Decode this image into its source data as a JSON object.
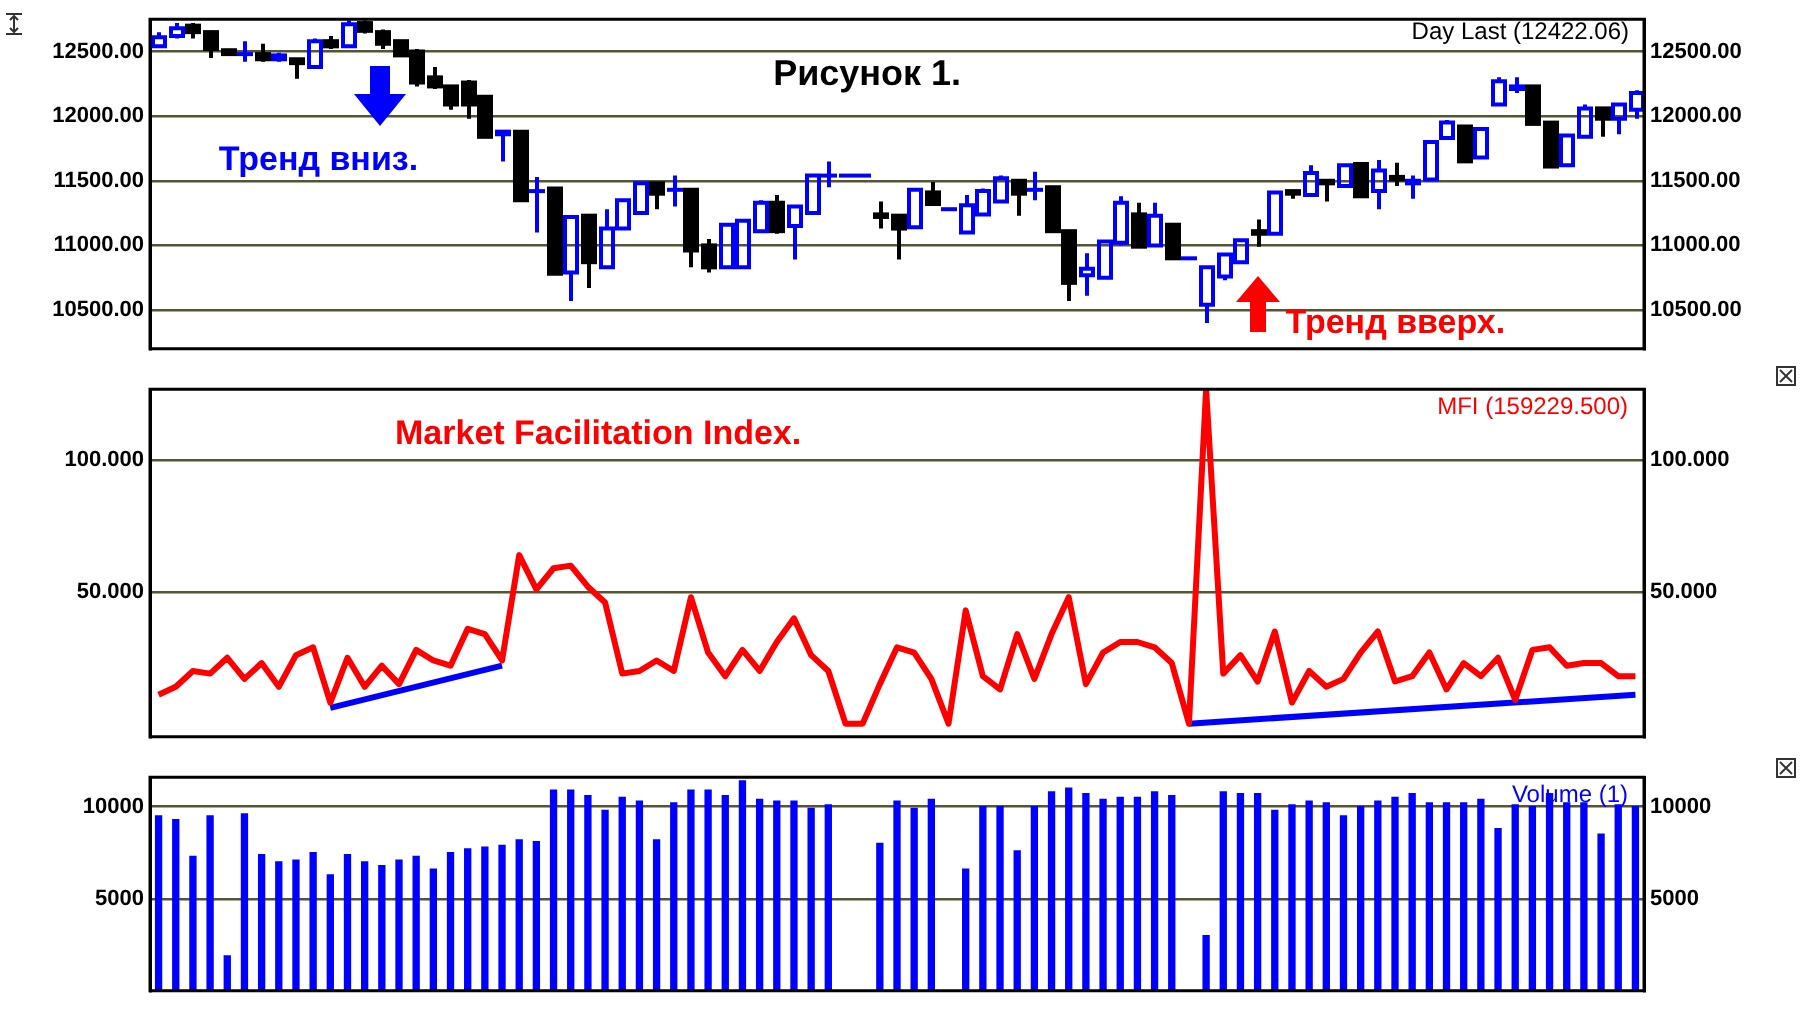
{
  "chart_data": [
    {
      "type": "candlestick",
      "title": "Рисунок 1.",
      "annotations": [
        "Тренд вниз.",
        "Тренд вверх.",
        "Day Last (12422.06)"
      ],
      "categories": [
        null,
        null,
        null,
        null,
        null,
        null,
        null,
        null,
        null,
        null,
        null,
        null,
        null,
        null,
        null,
        null,
        null,
        null,
        null,
        null,
        null,
        null,
        null,
        null,
        null,
        null,
        null,
        null,
        null,
        null,
        null,
        null,
        null,
        null,
        null,
        null,
        null,
        null,
        null,
        null,
        null,
        null,
        null,
        null,
        null,
        null,
        null,
        null,
        null,
        null,
        null,
        null,
        null,
        null,
        null,
        null,
        null,
        null,
        null,
        null,
        null,
        null,
        null,
        null,
        null,
        null,
        null,
        null,
        null,
        null,
        null,
        null,
        null,
        null,
        null,
        null,
        null,
        null,
        null,
        null,
        null,
        null,
        null,
        null,
        null,
        null,
        null
      ],
      "ohlc": [
        [
          12540,
          12650,
          12530,
          12610
        ],
        [
          12620,
          12720,
          12600,
          12680
        ],
        [
          12700,
          12720,
          12600,
          12650
        ],
        [
          12650,
          12660,
          12450,
          12520
        ],
        [
          12510,
          12520,
          12470,
          12480
        ],
        [
          12470,
          12580,
          12420,
          12480
        ],
        [
          12480,
          12560,
          12420,
          12440
        ],
        [
          12440,
          12490,
          12420,
          12470
        ],
        [
          12440,
          12450,
          12290,
          12410
        ],
        [
          12380,
          12600,
          12370,
          12580
        ],
        [
          12580,
          12620,
          12520,
          12540
        ],
        [
          12540,
          12740,
          12530,
          12710
        ],
        [
          12720,
          12740,
          12640,
          12660
        ],
        [
          12650,
          12670,
          12520,
          12560
        ],
        [
          12580,
          12590,
          12460,
          12470
        ],
        [
          12500,
          12520,
          12230,
          12260
        ],
        [
          12300,
          12380,
          12210,
          12230
        ],
        [
          12230,
          12240,
          12050,
          12090
        ],
        [
          12260,
          12280,
          11980,
          12090
        ],
        [
          12150,
          12150,
          11830,
          11840
        ],
        [
          11860,
          11890,
          11650,
          11880
        ],
        [
          11880,
          11890,
          11340,
          11350
        ],
        [
          11410,
          11530,
          11100,
          11420
        ],
        [
          11440,
          11450,
          10780,
          10780
        ],
        [
          10790,
          11230,
          10570,
          11220
        ],
        [
          11230,
          11240,
          10670,
          10870
        ],
        [
          10830,
          11280,
          10820,
          11130
        ],
        [
          11130,
          11350,
          11120,
          11350
        ],
        [
          11250,
          11490,
          11240,
          11480
        ],
        [
          11480,
          11490,
          11280,
          11400
        ],
        [
          11420,
          11540,
          11300,
          11430
        ],
        [
          11430,
          11440,
          10830,
          10960
        ],
        [
          11000,
          11050,
          10790,
          10830
        ],
        [
          10830,
          11170,
          10820,
          11160
        ],
        [
          10830,
          11190,
          10820,
          11190
        ],
        [
          11110,
          11350,
          11100,
          11330
        ],
        [
          11330,
          11390,
          11090,
          11110
        ],
        [
          11150,
          11310,
          10890,
          11300
        ],
        [
          11250,
          11540,
          11240,
          11540
        ],
        [
          11530,
          11650,
          11450,
          11540
        ],
        [
          11540,
          11540,
          11540,
          11540
        ],
        [
          11540,
          11540,
          11540,
          11540
        ],
        [
          11240,
          11340,
          11130,
          11220
        ],
        [
          11230,
          11240,
          10890,
          11130
        ],
        [
          11140,
          11440,
          11130,
          11430
        ],
        [
          11410,
          11490,
          11310,
          11320
        ],
        [
          11280,
          11280,
          11280,
          11280
        ],
        [
          11100,
          11390,
          11090,
          11310
        ],
        [
          11240,
          11440,
          11230,
          11420
        ],
        [
          11340,
          11540,
          11330,
          11520
        ],
        [
          11500,
          11510,
          11230,
          11400
        ],
        [
          11420,
          11570,
          11350,
          11430
        ],
        [
          11450,
          11460,
          11100,
          11110
        ],
        [
          11110,
          11120,
          10570,
          10710
        ],
        [
          10770,
          10940,
          10610,
          10820
        ],
        [
          10750,
          11040,
          10740,
          11030
        ],
        [
          11020,
          11380,
          11000,
          11330
        ],
        [
          11240,
          11330,
          10990,
          10990
        ],
        [
          11000,
          11330,
          10990,
          11230
        ],
        [
          11160,
          11170,
          10890,
          10900
        ],
        [
          10900,
          10900,
          10900,
          10900
        ],
        [
          10540,
          10840,
          10400,
          10830
        ],
        [
          10760,
          10940,
          10730,
          10930
        ],
        [
          10870,
          11050,
          10860,
          11040
        ],
        [
          11110,
          11200,
          10990,
          11090
        ],
        [
          11090,
          11420,
          11080,
          11410
        ],
        [
          11420,
          11430,
          11360,
          11400
        ],
        [
          11390,
          11620,
          11380,
          11560
        ],
        [
          11500,
          11510,
          11340,
          11480
        ],
        [
          11460,
          11630,
          11450,
          11620
        ],
        [
          11630,
          11640,
          11370,
          11380
        ],
        [
          11420,
          11660,
          11280,
          11580
        ],
        [
          11530,
          11640,
          11460,
          11510
        ],
        [
          11480,
          11540,
          11360,
          11500
        ],
        [
          11510,
          11810,
          11500,
          11800
        ],
        [
          11830,
          11970,
          11820,
          11950
        ],
        [
          11920,
          11930,
          11650,
          11650
        ],
        [
          11680,
          11910,
          11670,
          11900
        ],
        [
          12090,
          12300,
          12080,
          12270
        ],
        [
          12210,
          12300,
          12180,
          12230
        ],
        [
          12230,
          12240,
          11940,
          11940
        ],
        [
          11950,
          11960,
          11600,
          11610
        ],
        [
          11620,
          11860,
          11610,
          11850
        ],
        [
          11840,
          12090,
          11830,
          12060
        ],
        [
          12060,
          12070,
          11840,
          11980
        ],
        [
          11980,
          12100,
          11860,
          12090
        ],
        [
          12050,
          12200,
          11980,
          12180
        ]
      ],
      "colors": [
        "#0000ff",
        "#0000ff",
        "#000000",
        "#000000",
        "#000000",
        "#0000ff",
        "#000000",
        "#0000ff",
        "#000000",
        "#0000ff",
        "#000000",
        "#0000ff",
        "#000000",
        "#000000",
        "#000000",
        "#000000",
        "#000000",
        "#000000",
        "#000000",
        "#000000",
        "#0000ff",
        "#000000",
        "#0000ff",
        "#000000",
        "#0000ff",
        "#000000",
        "#0000ff",
        "#0000ff",
        "#0000ff",
        "#000000",
        "#0000ff",
        "#000000",
        "#000000",
        "#0000ff",
        "#0000ff",
        "#0000ff",
        "#000000",
        "#0000ff",
        "#0000ff",
        "#0000ff",
        "#0000ff",
        "#0000ff",
        "#000000",
        "#000000",
        "#0000ff",
        "#000000",
        "#0000ff",
        "#0000ff",
        "#0000ff",
        "#0000ff",
        "#000000",
        "#0000ff",
        "#000000",
        "#000000",
        "#0000ff",
        "#0000ff",
        "#0000ff",
        "#000000",
        "#0000ff",
        "#000000",
        "#0000ff",
        "#0000ff",
        "#0000ff",
        "#0000ff",
        "#000000",
        "#0000ff",
        "#000000",
        "#0000ff",
        "#000000",
        "#0000ff",
        "#000000",
        "#0000ff",
        "#000000",
        "#0000ff",
        "#0000ff",
        "#0000ff",
        "#000000",
        "#0000ff",
        "#0000ff",
        "#0000ff",
        "#000000",
        "#000000",
        "#0000ff",
        "#0000ff",
        "#000000",
        "#0000ff",
        "#0000ff"
      ],
      "ylim": [
        10200,
        12750
      ],
      "yticks": [
        {
          "value": 12500,
          "label": "12500.00"
        },
        {
          "value": 12000,
          "label": "12000.00"
        },
        {
          "value": 11500,
          "label": "11500.00"
        },
        {
          "value": 11000,
          "label": "11000.00"
        },
        {
          "value": 10500,
          "label": "10500.00"
        }
      ],
      "y2lim": [
        10200,
        12750
      ],
      "y2ticks": [
        {
          "value": 12500,
          "label": "12500.00"
        },
        {
          "value": 12000,
          "label": "12000.00"
        },
        {
          "value": 11500,
          "label": "11500.00"
        },
        {
          "value": 11000,
          "label": "11000.00"
        },
        {
          "value": 10500,
          "label": "10500.00"
        }
      ],
      "tick_labels": "y",
      "grid": "y"
    },
    {
      "type": "line",
      "annotations": [
        "Market Facilitation Index."
      ],
      "categories": [
        null,
        null,
        null,
        null,
        null,
        null,
        null,
        null,
        null,
        null,
        null,
        null,
        null,
        null,
        null,
        null,
        null,
        null,
        null,
        null,
        null,
        null,
        null,
        null,
        null,
        null,
        null,
        null,
        null,
        null,
        null,
        null,
        null,
        null,
        null,
        null,
        null,
        null,
        null,
        null,
        null,
        null,
        null,
        null,
        null,
        null,
        null,
        null,
        null,
        null,
        null,
        null,
        null,
        null,
        null,
        null,
        null,
        null,
        null,
        null,
        null,
        null,
        null,
        null,
        null,
        null,
        null,
        null,
        null,
        null,
        null,
        null,
        null,
        null,
        null,
        null,
        null,
        null,
        null,
        null,
        null,
        null,
        null,
        null,
        null,
        null,
        null
      ],
      "series": [
        {
          "name": "MFI (159229.500)",
          "color": "#ff0000",
          "values": [
            11,
            14,
            20,
            19,
            25,
            17,
            23,
            14,
            26,
            29,
            8,
            25,
            14,
            22,
            15,
            28,
            24,
            22,
            36,
            34,
            24,
            64,
            51,
            59,
            60,
            52,
            46,
            19,
            20,
            24,
            20,
            48,
            27,
            18,
            28,
            20,
            31,
            40,
            26,
            20,
            0,
            0,
            15,
            29,
            27,
            17,
            0,
            43,
            18,
            13,
            34,
            17,
            34,
            48,
            15,
            27,
            31,
            31,
            29,
            23,
            0,
            127,
            19,
            26,
            16,
            35,
            8,
            20,
            14,
            17,
            27,
            35,
            16,
            18,
            27,
            13,
            23,
            18,
            25,
            9,
            28,
            29,
            22,
            23,
            23,
            18,
            18
          ]
        },
        {
          "type": "line",
          "color": "#0000ff",
          "values": [
            null,
            null,
            null,
            null,
            null,
            null,
            null,
            null,
            null,
            null,
            6,
            null,
            null,
            null,
            null,
            null,
            null,
            null,
            null,
            null,
            22,
            null,
            null,
            null,
            null,
            null,
            null,
            null,
            null,
            null,
            null,
            null,
            null,
            null,
            null,
            null,
            null,
            null,
            null,
            null,
            null,
            null,
            null,
            null,
            null,
            null,
            null,
            null,
            null,
            null,
            null,
            null,
            null,
            null,
            null,
            null,
            null,
            null,
            null,
            null,
            null,
            null,
            null,
            null,
            null,
            null,
            null,
            null,
            null,
            null,
            null,
            null,
            null,
            null,
            null,
            null,
            null,
            null,
            null,
            null,
            null,
            null,
            null,
            null,
            null,
            null,
            null
          ]
        },
        {
          "type": "line",
          "color": "#0000ff",
          "values": [
            null,
            null,
            null,
            null,
            null,
            null,
            null,
            null,
            null,
            null,
            null,
            null,
            null,
            null,
            null,
            null,
            null,
            null,
            null,
            null,
            null,
            null,
            null,
            null,
            null,
            null,
            null,
            null,
            null,
            null,
            null,
            null,
            null,
            null,
            null,
            null,
            null,
            null,
            null,
            null,
            null,
            null,
            null,
            null,
            null,
            null,
            null,
            null,
            null,
            null,
            null,
            null,
            null,
            null,
            null,
            null,
            null,
            null,
            null,
            null,
            0,
            null,
            null,
            null,
            null,
            null,
            null,
            null,
            null,
            null,
            null,
            null,
            null,
            null,
            null,
            null,
            null,
            null,
            null,
            null,
            null,
            null,
            null,
            null,
            null,
            null,
            11
          ]
        }
      ],
      "ylim": [
        -5,
        127
      ],
      "yticks": [
        {
          "value": 100,
          "label": "100.000"
        },
        {
          "value": 50,
          "label": "50.000"
        }
      ],
      "y2lim": [
        -5,
        127
      ],
      "y2ticks": [
        {
          "value": 100,
          "label": "100.000"
        },
        {
          "value": 50,
          "label": "50.000"
        }
      ],
      "tick_labels": "y",
      "grid": "y"
    },
    {
      "type": "bar",
      "categories": [
        null,
        null,
        null,
        null,
        null,
        null,
        null,
        null,
        null,
        null,
        null,
        null,
        null,
        null,
        null,
        null,
        null,
        null,
        null,
        null,
        null,
        null,
        null,
        null,
        null,
        null,
        null,
        null,
        null,
        null,
        null,
        null,
        null,
        null,
        null,
        null,
        null,
        null,
        null,
        null,
        null,
        null,
        null,
        null,
        null,
        null,
        null,
        null,
        null,
        null,
        null,
        null,
        null,
        null,
        null,
        null,
        null,
        null,
        null,
        null,
        null,
        null,
        null,
        null,
        null,
        null,
        null,
        null,
        null,
        null,
        null,
        null,
        null,
        null,
        null,
        null,
        null,
        null,
        null,
        null,
        null,
        null,
        null,
        null,
        null,
        null,
        null
      ],
      "series": [
        {
          "name": "Volume (1)",
          "color": "#0000ff",
          "values": [
            9500,
            9300,
            7300,
            9500,
            1900,
            9600,
            7400,
            7000,
            7100,
            7500,
            6300,
            7400,
            7000,
            6800,
            7100,
            7300,
            6600,
            7500,
            7700,
            7800,
            7900,
            8200,
            8100,
            10900,
            10900,
            10600,
            9800,
            10500,
            10300,
            8200,
            10200,
            10900,
            10900,
            10600,
            11400,
            10400,
            10300,
            10300,
            9900,
            10100,
            null,
            null,
            8000,
            10300,
            9900,
            10400,
            null,
            6600,
            10000,
            10000,
            7600,
            10000,
            10800,
            11000,
            10700,
            10400,
            10500,
            10500,
            10800,
            10600,
            null,
            3000,
            10800,
            10700,
            10700,
            9800,
            10100,
            10300,
            10200,
            9500,
            10000,
            10300,
            10500,
            10700,
            10200,
            10200,
            10200,
            10400,
            8800,
            10100,
            10000,
            10700,
            10200,
            10200,
            8500,
            10100,
            10000
          ]
        }
      ],
      "ylim": [
        0,
        11600
      ],
      "yticks": [
        10000,
        5000
      ],
      "y2lim": [
        0,
        11600
      ],
      "y2ticks": [
        10000,
        5000
      ],
      "tick_labels": "y",
      "grid": "y"
    }
  ]
}
